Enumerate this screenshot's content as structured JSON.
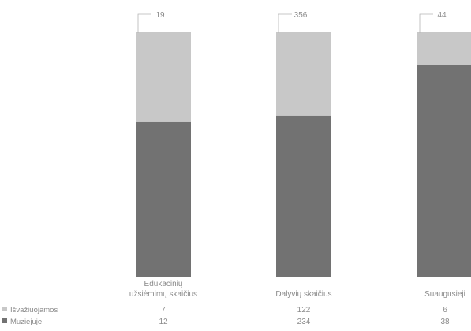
{
  "colors": {
    "isvaziuojamos": "#c8c8c8",
    "muziejuje": "#727272",
    "text": "#8a8a8a",
    "leader": "#b5b5b5"
  },
  "chart_data": {
    "type": "bar",
    "stacked": true,
    "percent_stacked": true,
    "categories": [
      [
        "Edukacinių",
        "užsiėmimų skaičius"
      ],
      [
        "Dalyvių skaičius"
      ],
      [
        "Suaugusieji"
      ]
    ],
    "totals": [
      "19",
      "356",
      "44"
    ],
    "series": [
      {
        "name": "Išvažiuojamos",
        "values": [
          7,
          122,
          6
        ],
        "color": "#c8c8c8"
      },
      {
        "name": "Muziejuje",
        "values": [
          12,
          234,
          38
        ],
        "color": "#727272"
      }
    ],
    "legend_position": "bottom-left (data table)",
    "grid": false
  }
}
